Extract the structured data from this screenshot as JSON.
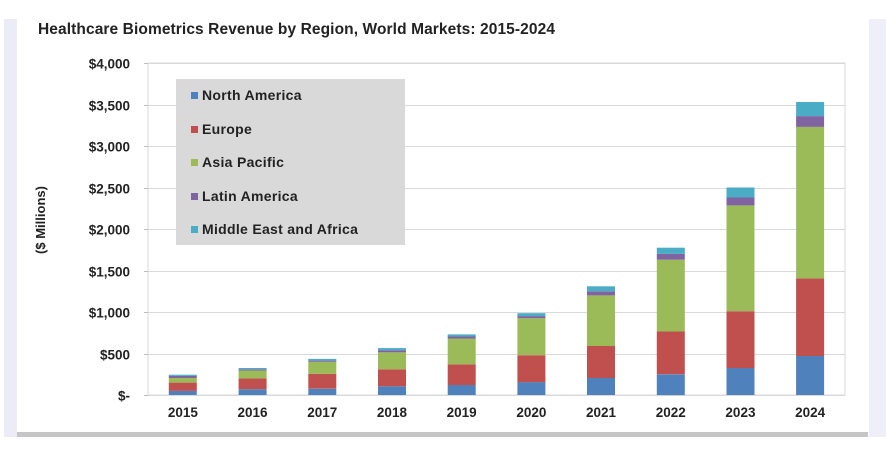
{
  "chart_data": {
    "type": "bar",
    "stacked": true,
    "title": "Healthcare Biometrics Revenue by Region, World Markets: 2015-2024",
    "xlabel": "",
    "ylabel": "($ Millions)",
    "ylim": [
      0,
      4000
    ],
    "ytick_step": 500,
    "ytick_labels": [
      "$-",
      "$500",
      "$1,000",
      "$1,500",
      "$2,000",
      "$2,500",
      "$3,000",
      "$3,500",
      "$4,000"
    ],
    "grid": true,
    "legend_position": "top-left",
    "categories": [
      "2015",
      "2016",
      "2017",
      "2018",
      "2019",
      "2020",
      "2021",
      "2022",
      "2023",
      "2024"
    ],
    "series": [
      {
        "name": "North America",
        "color": "#4F81BD",
        "values": [
          50,
          70,
          75,
          105,
          120,
          155,
          205,
          250,
          325,
          470
        ]
      },
      {
        "name": "Europe",
        "color": "#C0504D",
        "values": [
          100,
          130,
          180,
          205,
          250,
          325,
          385,
          515,
          685,
          935
        ]
      },
      {
        "name": "Asia Pacific",
        "color": "#9BBB59",
        "values": [
          55,
          95,
          145,
          205,
          310,
          445,
          610,
          865,
          1275,
          1825
        ]
      },
      {
        "name": "Latin America",
        "color": "#8064A2",
        "values": [
          25,
          15,
          15,
          25,
          25,
          25,
          50,
          70,
          95,
          130
        ]
      },
      {
        "name": "Middle East and Africa",
        "color": "#4BACC6",
        "values": [
          15,
          15,
          20,
          25,
          25,
          35,
          60,
          75,
          120,
          170
        ]
      }
    ]
  }
}
